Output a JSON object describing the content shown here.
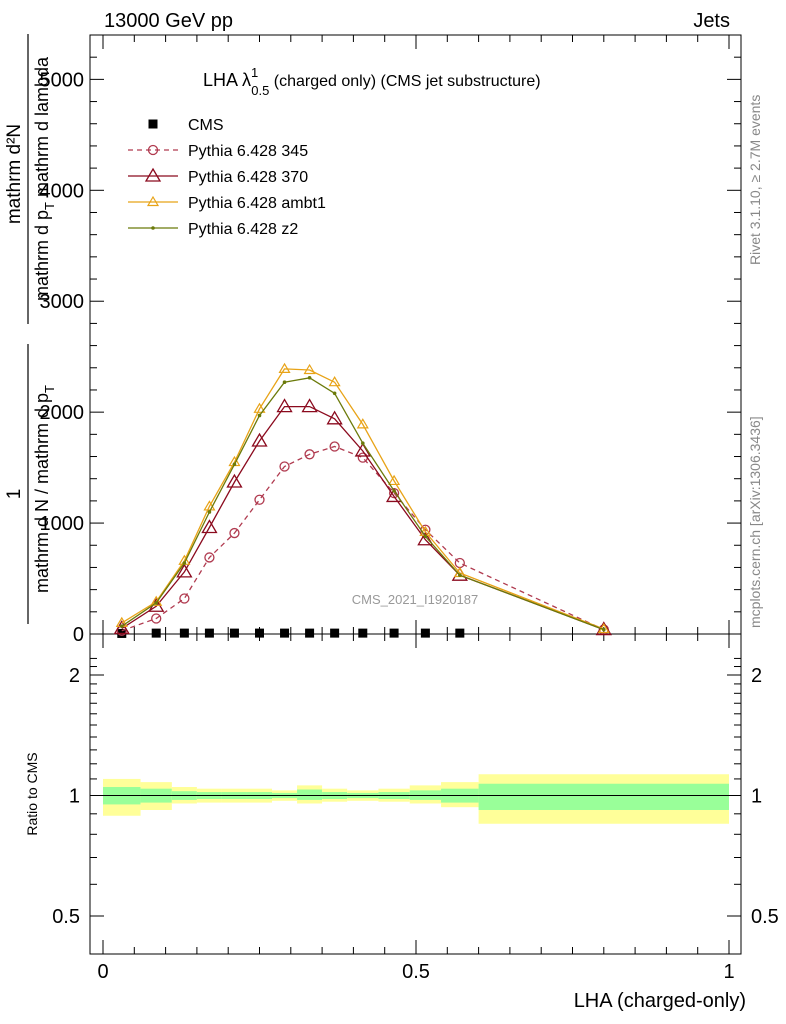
{
  "header": {
    "left": "13000 GeV pp",
    "right": "Jets"
  },
  "side_labels": {
    "rivet": "Rivet 3.1.10, ≥ 2.7M events",
    "mcplots": "mcplots.cern.ch [arXiv:1306.3436]"
  },
  "watermark": "CMS_2021_I1920187",
  "colors": {
    "cms": "#000000",
    "p345": "#b03a4f",
    "p370": "#8b0a1e",
    "ambt1": "#e8a317",
    "z2": "#6b7a0a",
    "band_inner": "#99ff99",
    "band_outer": "#ffff99"
  },
  "chart_data": [
    {
      "type": "line",
      "title_main": "LHA λ",
      "title_sup": "1",
      "title_sub": "0.5",
      "title_rest": " (charged only) (CMS jet substructure)",
      "ylabel_top": "mathrm d²N",
      "ylabel_top2": "mathrm d p_T mathrm d lambda",
      "ylabel_frac_num": "1",
      "ylabel_frac_den": "mathrm d N / mathrm d p_T",
      "ylabel_num_sym": "mathrm d²N",
      "ylabel_den_sym": "mathrm d p",
      "ylabel_den_sub": "T",
      "ylabel_den_rest": " mathrm d lambda",
      "ylabel_den2": "mathrm d N / mathrm d p",
      "ylabel_den2_sub": "T",
      "ylim": [
        0,
        5400
      ],
      "yticks": [
        0,
        1000,
        2000,
        3000,
        4000,
        5000
      ],
      "ytick_labels": [
        "0",
        "1000",
        "2000",
        "3000",
        "4000",
        "5000"
      ],
      "xlim": [
        -0.02,
        1.0
      ],
      "legend_position": "top-left",
      "series": [
        {
          "key": "cms",
          "name": "CMS",
          "x": [
            0.03,
            0.085,
            0.13,
            0.17,
            0.21,
            0.25,
            0.29,
            0.33,
            0.37,
            0.415,
            0.465,
            0.515,
            0.57
          ],
          "y": [
            5,
            8,
            8,
            8,
            8,
            8,
            8,
            8,
            8,
            8,
            8,
            8,
            8
          ]
        },
        {
          "key": "p345",
          "name": "Pythia 6.428 345",
          "x": [
            0.03,
            0.085,
            0.13,
            0.17,
            0.21,
            0.25,
            0.29,
            0.33,
            0.37,
            0.415,
            0.465,
            0.515,
            0.57,
            0.8
          ],
          "y": [
            30,
            140,
            320,
            690,
            910,
            1210,
            1510,
            1620,
            1690,
            1590,
            1270,
            940,
            640,
            40
          ]
        },
        {
          "key": "p370",
          "name": "Pythia 6.428 370",
          "x": [
            0.03,
            0.085,
            0.13,
            0.17,
            0.21,
            0.25,
            0.29,
            0.33,
            0.37,
            0.415,
            0.465,
            0.515,
            0.57,
            0.8
          ],
          "y": [
            50,
            250,
            560,
            960,
            1370,
            1740,
            2050,
            2050,
            1940,
            1650,
            1240,
            850,
            530,
            40
          ]
        },
        {
          "key": "ambt1",
          "name": "Pythia 6.428 ambt1",
          "x": [
            0.03,
            0.085,
            0.13,
            0.17,
            0.21,
            0.25,
            0.29,
            0.33,
            0.37,
            0.415,
            0.465,
            0.515,
            0.57,
            0.8
          ],
          "y": [
            100,
            290,
            660,
            1150,
            1550,
            2030,
            2390,
            2380,
            2270,
            1890,
            1380,
            920,
            550,
            45
          ]
        },
        {
          "key": "z2",
          "name": "Pythia 6.428 z2",
          "x": [
            0.03,
            0.085,
            0.13,
            0.17,
            0.21,
            0.25,
            0.29,
            0.33,
            0.37,
            0.415,
            0.465,
            0.515,
            0.57,
            0.8
          ],
          "y": [
            70,
            280,
            640,
            1100,
            1530,
            1970,
            2270,
            2310,
            2170,
            1720,
            1290,
            880,
            530,
            40
          ]
        }
      ]
    },
    {
      "type": "area",
      "ylabel": "Ratio to CMS",
      "xlabel": "LHA (charged-only)",
      "ylim": [
        0.35,
        2.3
      ],
      "yticks": [
        0.5,
        1,
        2
      ],
      "ytick_labels": [
        "0.5",
        "1",
        "2"
      ],
      "xlim": [
        -0.02,
        1.0
      ],
      "xticks": [
        0,
        0.5,
        1
      ],
      "xtick_labels": [
        "0",
        "0.5",
        "1"
      ],
      "bins": [
        {
          "lo": 0.0,
          "hi": 0.06,
          "inner": [
            0.95,
            1.05
          ],
          "outer": [
            0.89,
            1.1
          ]
        },
        {
          "lo": 0.06,
          "hi": 0.11,
          "inner": [
            0.96,
            1.04
          ],
          "outer": [
            0.92,
            1.08
          ]
        },
        {
          "lo": 0.11,
          "hi": 0.15,
          "inner": [
            0.975,
            1.025
          ],
          "outer": [
            0.955,
            1.05
          ]
        },
        {
          "lo": 0.15,
          "hi": 0.19,
          "inner": [
            0.98,
            1.02
          ],
          "outer": [
            0.96,
            1.04
          ]
        },
        {
          "lo": 0.19,
          "hi": 0.23,
          "inner": [
            0.98,
            1.02
          ],
          "outer": [
            0.96,
            1.04
          ]
        },
        {
          "lo": 0.23,
          "hi": 0.27,
          "inner": [
            0.98,
            1.02
          ],
          "outer": [
            0.96,
            1.04
          ]
        },
        {
          "lo": 0.27,
          "hi": 0.31,
          "inner": [
            0.985,
            1.015
          ],
          "outer": [
            0.97,
            1.03
          ]
        },
        {
          "lo": 0.31,
          "hi": 0.35,
          "inner": [
            0.975,
            1.035
          ],
          "outer": [
            0.955,
            1.06
          ]
        },
        {
          "lo": 0.35,
          "hi": 0.39,
          "inner": [
            0.98,
            1.02
          ],
          "outer": [
            0.965,
            1.04
          ]
        },
        {
          "lo": 0.39,
          "hi": 0.44,
          "inner": [
            0.985,
            1.015
          ],
          "outer": [
            0.97,
            1.03
          ]
        },
        {
          "lo": 0.44,
          "hi": 0.49,
          "inner": [
            0.98,
            1.02
          ],
          "outer": [
            0.965,
            1.04
          ]
        },
        {
          "lo": 0.49,
          "hi": 0.54,
          "inner": [
            0.975,
            1.03
          ],
          "outer": [
            0.955,
            1.06
          ]
        },
        {
          "lo": 0.54,
          "hi": 0.6,
          "inner": [
            0.96,
            1.04
          ],
          "outer": [
            0.935,
            1.08
          ]
        },
        {
          "lo": 0.6,
          "hi": 1.0,
          "inner": [
            0.92,
            1.07
          ],
          "outer": [
            0.85,
            1.13
          ]
        }
      ]
    }
  ]
}
